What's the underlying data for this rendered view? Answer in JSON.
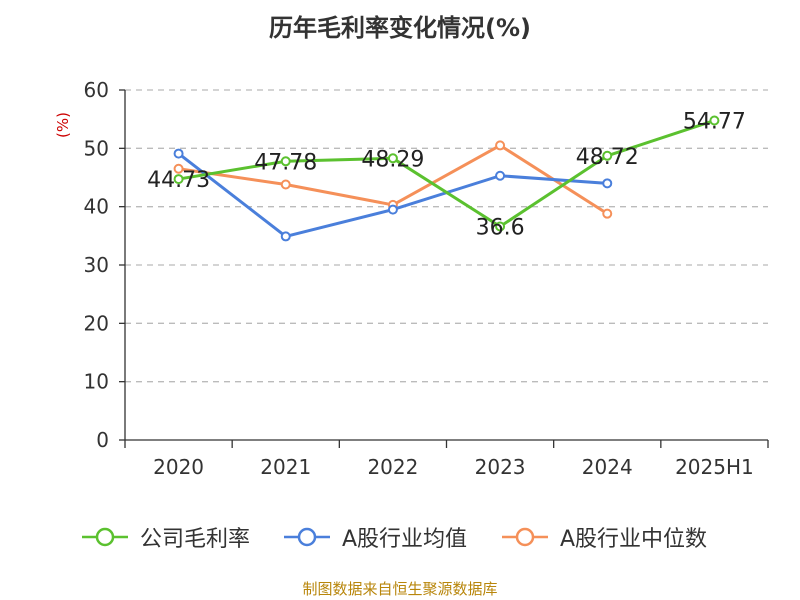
{
  "title": "历年毛利率变化情况(%)",
  "source_note": "制图数据来自恒生聚源数据库",
  "colors": {
    "company": "#5bc12f",
    "industry_avg": "#4a7fdb",
    "industry_median": "#f59059",
    "ylabel": "#cc0000",
    "grid": "#bbbbbb",
    "axis": "#333333",
    "source": "#b8860b"
  },
  "chart_data": {
    "type": "line",
    "title": "历年毛利率变化情况(%)",
    "xlabel": "",
    "ylabel": "(%)",
    "categories": [
      "2020",
      "2021",
      "2022",
      "2023",
      "2024",
      "2025H1"
    ],
    "ylim": [
      0,
      60
    ],
    "yticks": [
      0,
      10,
      20,
      30,
      40,
      50,
      60
    ],
    "grid": true,
    "legend_position": "bottom",
    "series": [
      {
        "name": "公司毛利率",
        "values": [
          44.73,
          47.78,
          48.29,
          36.6,
          48.72,
          54.77
        ],
        "data_labels": [
          "44.73",
          "47.78",
          "48.29",
          "36.6",
          "48.72",
          "54.77"
        ]
      },
      {
        "name": "A股行业均值",
        "values": [
          49.1,
          34.9,
          39.5,
          45.3,
          44.0,
          null
        ]
      },
      {
        "name": "A股行业中位数",
        "values": [
          46.5,
          43.8,
          40.3,
          50.5,
          38.8,
          null
        ]
      }
    ]
  }
}
